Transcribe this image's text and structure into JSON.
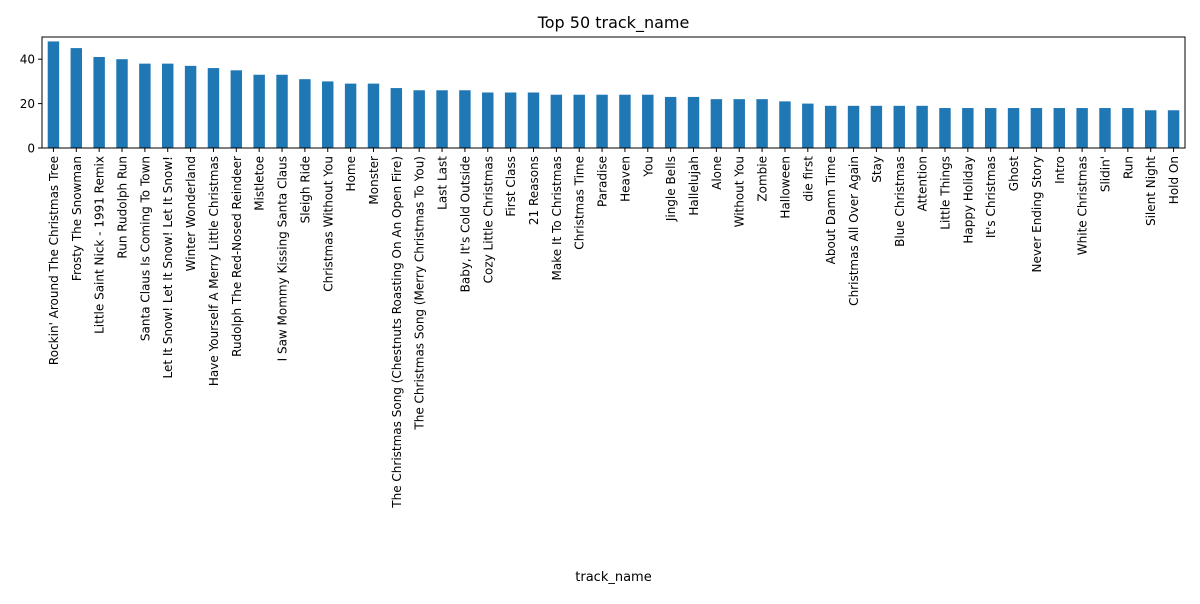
{
  "chart_data": {
    "type": "bar",
    "title": "Top 50 track_name",
    "xlabel": "track_name",
    "ylabel": "",
    "ylim": [
      0,
      50
    ],
    "yticks": [
      0,
      20,
      40
    ],
    "grid": false,
    "legend": "none",
    "bar_color": "#1f77b4",
    "categories": [
      "Rockin' Around The Christmas Tree",
      "Frosty The Snowman",
      "Little Saint Nick - 1991 Remix",
      "Run Rudolph Run",
      "Santa Claus Is Coming To Town",
      "Let It Snow! Let It Snow! Let It Snow!",
      "Winter Wonderland",
      "Have Yourself A Merry Little Christmas",
      "Rudolph The Red-Nosed Reindeer",
      "Mistletoe",
      "I Saw Mommy Kissing Santa Claus",
      "Sleigh Ride",
      "Christmas Without You",
      "Home",
      "Monster",
      "The Christmas Song (Chestnuts Roasting On An Open Fire)",
      "The Christmas Song (Merry Christmas To You)",
      "Last Last",
      "Baby, It's Cold Outside",
      "Cozy Little Christmas",
      "First Class",
      "21 Reasons",
      "Make It To Christmas",
      "Christmas Time",
      "Paradise",
      "Heaven",
      "You",
      "Jingle Bells",
      "Hallelujah",
      "Alone",
      "Without You",
      "Zombie",
      "Halloween",
      "die first",
      "About Damn Time",
      "Christmas All Over Again",
      "Stay",
      "Blue Christmas",
      "Attention",
      "Little Things",
      "Happy Holiday",
      "It's Christmas",
      "Ghost",
      "Never Ending Story",
      "Intro",
      "White Christmas",
      "Slidin'",
      "Run",
      "Silent Night",
      "Hold On"
    ],
    "values": [
      48,
      45,
      41,
      40,
      38,
      38,
      37,
      36,
      35,
      33,
      33,
      31,
      30,
      29,
      29,
      27,
      26,
      26,
      26,
      25,
      25,
      25,
      24,
      24,
      24,
      24,
      24,
      23,
      23,
      22,
      22,
      22,
      21,
      20,
      19,
      19,
      19,
      19,
      19,
      18,
      18,
      18,
      18,
      18,
      18,
      18,
      18,
      18,
      17,
      17
    ]
  }
}
